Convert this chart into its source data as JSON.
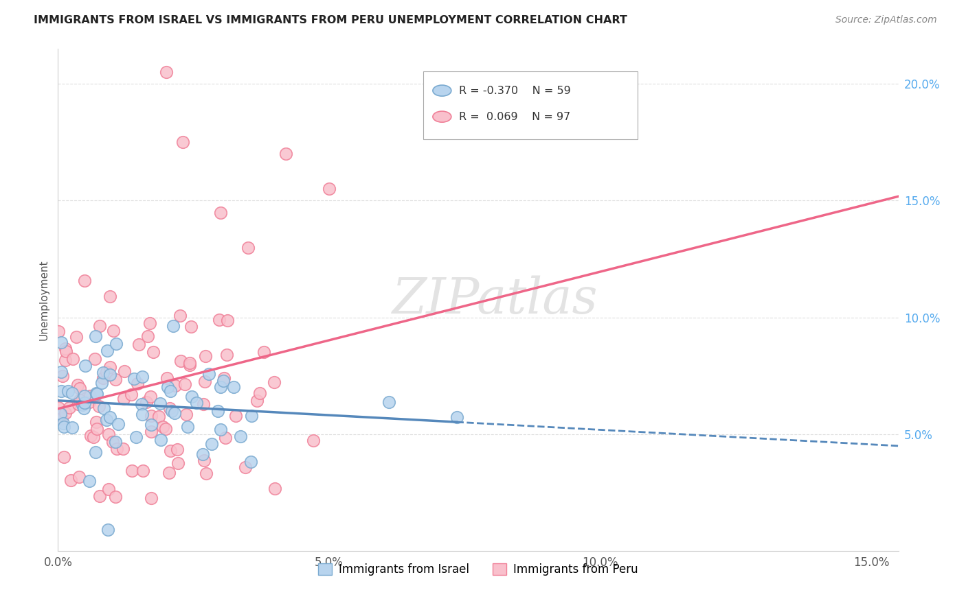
{
  "title": "IMMIGRANTS FROM ISRAEL VS IMMIGRANTS FROM PERU UNEMPLOYMENT CORRELATION CHART",
  "source": "Source: ZipAtlas.com",
  "ylabel_label": "Unemployment",
  "legend_israel": "Immigrants from Israel",
  "legend_peru": "Immigrants from Peru",
  "R_israel": "-0.370",
  "N_israel": "59",
  "R_peru": "0.069",
  "N_peru": "97",
  "color_israel_fill": "#b8d4ee",
  "color_peru_fill": "#f9c0cc",
  "color_israel_edge": "#7aaad0",
  "color_peru_edge": "#f08098",
  "color_israel_line": "#5588bb",
  "color_peru_line": "#ee6688",
  "background_color": "#ffffff",
  "xlim": [
    0.0,
    0.155
  ],
  "ylim": [
    0.0,
    0.215
  ],
  "title_color": "#222222",
  "source_color": "#888888",
  "tick_color_x": "#555555",
  "tick_color_y_right": "#55aaee",
  "grid_color": "#dddddd",
  "watermark_color": "#cccccc"
}
